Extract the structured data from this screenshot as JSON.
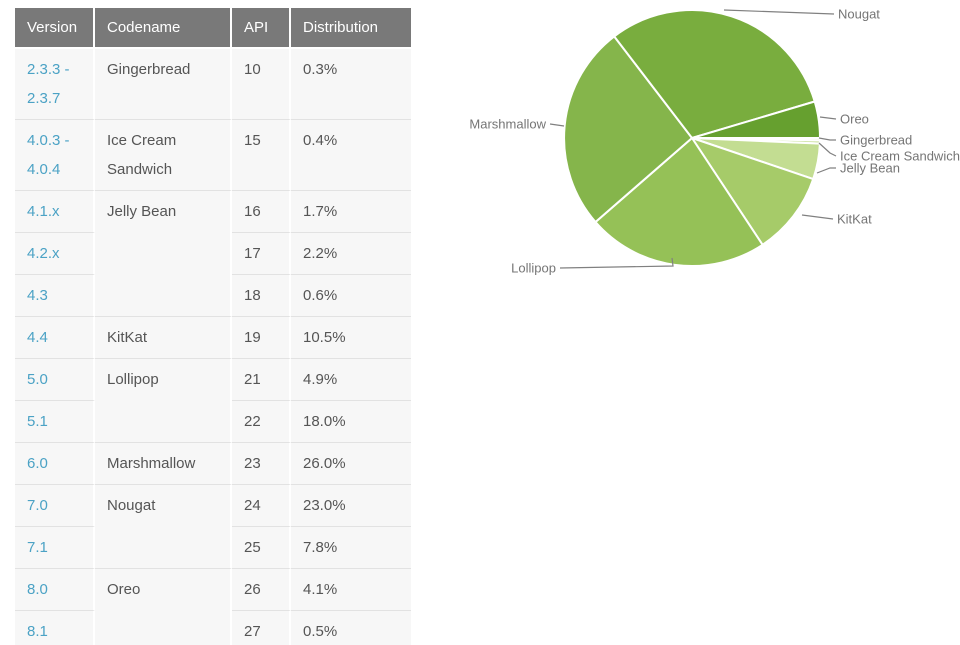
{
  "table": {
    "headers": [
      "Version",
      "Codename",
      "API",
      "Distribution"
    ],
    "groups": [
      {
        "codename": "Gingerbread",
        "rows": [
          {
            "version": "2.3.3 -\n2.3.7",
            "api": "10",
            "dist": "0.3%"
          }
        ]
      },
      {
        "codename": "Ice Cream Sandwich",
        "rows": [
          {
            "version": "4.0.3 -\n4.0.4",
            "api": "15",
            "dist": "0.4%"
          }
        ]
      },
      {
        "codename": "Jelly Bean",
        "rows": [
          {
            "version": "4.1.x",
            "api": "16",
            "dist": "1.7%"
          },
          {
            "version": "4.2.x",
            "api": "17",
            "dist": "2.2%"
          },
          {
            "version": "4.3",
            "api": "18",
            "dist": "0.6%"
          }
        ]
      },
      {
        "codename": "KitKat",
        "rows": [
          {
            "version": "4.4",
            "api": "19",
            "dist": "10.5%"
          }
        ]
      },
      {
        "codename": "Lollipop",
        "rows": [
          {
            "version": "5.0",
            "api": "21",
            "dist": "4.9%"
          },
          {
            "version": "5.1",
            "api": "22",
            "dist": "18.0%"
          }
        ]
      },
      {
        "codename": "Marshmallow",
        "rows": [
          {
            "version": "6.0",
            "api": "23",
            "dist": "26.0%"
          }
        ]
      },
      {
        "codename": "Nougat",
        "rows": [
          {
            "version": "7.0",
            "api": "24",
            "dist": "23.0%"
          },
          {
            "version": "7.1",
            "api": "25",
            "dist": "7.8%"
          }
        ]
      },
      {
        "codename": "Oreo",
        "rows": [
          {
            "version": "8.0",
            "api": "26",
            "dist": "4.1%"
          },
          {
            "version": "8.1",
            "api": "27",
            "dist": "0.5%"
          }
        ]
      }
    ],
    "colors": {
      "header_bg": "#797979",
      "header_text": "#ffffff",
      "version_link": "#4ba2c5",
      "cell_text": "#555555",
      "cell_bg": "#f7f7f7"
    }
  },
  "chart_data": {
    "type": "pie",
    "direction": "clockwise",
    "start_angle_deg": 0,
    "legend_position": "outside-callouts",
    "slices": [
      {
        "label": "Gingerbread",
        "value": 0.3,
        "color": "#d9e9b8"
      },
      {
        "label": "Ice Cream Sandwich",
        "value": 0.4,
        "color": "#cfe3a4"
      },
      {
        "label": "Jelly Bean",
        "value": 4.5,
        "color": "#c3dd92"
      },
      {
        "label": "KitKat",
        "value": 10.5,
        "color": "#a6cb69"
      },
      {
        "label": "Lollipop",
        "value": 22.9,
        "color": "#95c157"
      },
      {
        "label": "Marshmallow",
        "value": 26.0,
        "color": "#85b54b"
      },
      {
        "label": "Nougat",
        "value": 30.8,
        "color": "#79ad3e"
      },
      {
        "label": "Oreo",
        "value": 4.6,
        "color": "#66a02f"
      }
    ],
    "callout_line_color": "#808080",
    "label_text_color": "#757575"
  }
}
